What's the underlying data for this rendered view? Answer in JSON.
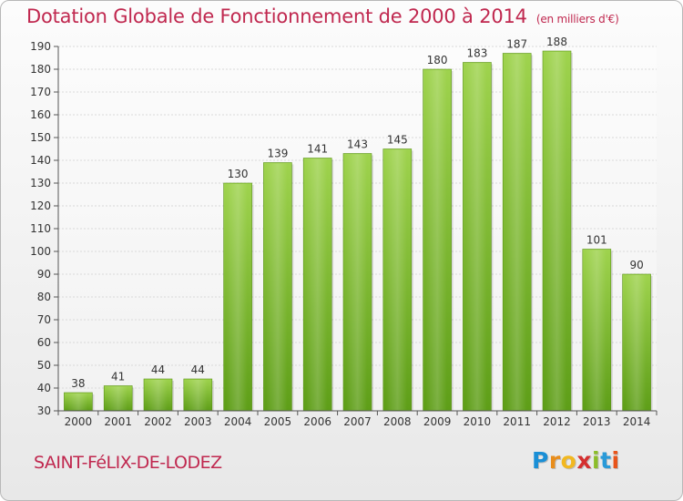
{
  "header": {
    "title": "Dotation Globale de Fonctionnement de 2000 à 2014",
    "unit": "(en milliers d'€)"
  },
  "footer": {
    "commune": "SAINT-FéLIX-DE-LODEZ",
    "logo": {
      "letters": [
        "P",
        "r",
        "o",
        "x",
        "i",
        "t",
        "i"
      ],
      "colors": [
        "#1a8fd6",
        "#e88d1b",
        "#f2b820",
        "#d42f2f",
        "#8cbd2a",
        "#2a9ad8",
        "#e8541b"
      ]
    }
  },
  "chart_data": {
    "type": "bar",
    "categories": [
      "2000",
      "2001",
      "2002",
      "2003",
      "2004",
      "2005",
      "2006",
      "2007",
      "2008",
      "2009",
      "2010",
      "2011",
      "2012",
      "2013",
      "2014"
    ],
    "values": [
      38,
      41,
      44,
      44,
      130,
      139,
      141,
      143,
      145,
      180,
      183,
      187,
      188,
      101,
      90
    ],
    "ylim": [
      30,
      190
    ],
    "yticks": [
      30,
      40,
      50,
      60,
      70,
      80,
      90,
      100,
      110,
      120,
      130,
      140,
      150,
      160,
      170,
      180,
      190
    ],
    "grid": true,
    "bar_color": "#7cb82f"
  }
}
